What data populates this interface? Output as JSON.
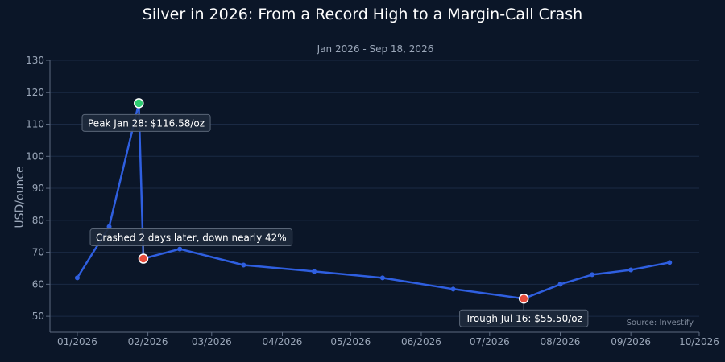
{
  "chart_data": {
    "type": "line",
    "title": "Silver in 2026: From a Record High to a Margin-Call Crash",
    "subtitle": "Jan 2026 - Sep 18, 2026",
    "ylabel": "USD/ounce",
    "xlabel": "",
    "source": "Source: Investify",
    "ylim": [
      45,
      130
    ],
    "xlim": [
      "2025-12-20",
      "2026-10-01"
    ],
    "yticks": [
      50,
      60,
      70,
      80,
      90,
      100,
      110,
      120,
      130
    ],
    "xticks": [
      {
        "date": "2026-01-01",
        "label": "01/2026"
      },
      {
        "date": "2026-02-01",
        "label": "02/2026"
      },
      {
        "date": "2026-03-01",
        "label": "03/2026"
      },
      {
        "date": "2026-04-01",
        "label": "04/2026"
      },
      {
        "date": "2026-05-01",
        "label": "05/2026"
      },
      {
        "date": "2026-06-01",
        "label": "06/2026"
      },
      {
        "date": "2026-07-01",
        "label": "07/2026"
      },
      {
        "date": "2026-08-01",
        "label": "08/2026"
      },
      {
        "date": "2026-09-01",
        "label": "09/2026"
      },
      {
        "date": "2026-10-01",
        "label": "10/2026"
      }
    ],
    "grid": true,
    "series": [
      {
        "color": "#2f5fe0",
        "points": [
          {
            "x": "2026-01-01",
            "y": 62
          },
          {
            "x": "2026-01-15",
            "y": 78
          },
          {
            "x": "2026-01-28",
            "y": 116.58
          },
          {
            "x": "2026-01-30",
            "y": 68
          },
          {
            "x": "2026-02-15",
            "y": 71
          },
          {
            "x": "2026-03-15",
            "y": 66
          },
          {
            "x": "2026-04-15",
            "y": 64
          },
          {
            "x": "2026-05-15",
            "y": 62
          },
          {
            "x": "2026-06-15",
            "y": 58.5
          },
          {
            "x": "2026-07-16",
            "y": 55.5
          },
          {
            "x": "2026-08-01",
            "y": 60
          },
          {
            "x": "2026-08-15",
            "y": 63
          },
          {
            "x": "2026-09-01",
            "y": 64.5
          },
          {
            "x": "2026-09-18",
            "y": 66.8
          }
        ]
      }
    ],
    "highlights": [
      {
        "x": "2026-01-28",
        "y": 116.58,
        "color": "#2ecc71"
      },
      {
        "x": "2026-01-30",
        "y": 68,
        "color": "#e74c3c"
      },
      {
        "x": "2026-07-16",
        "y": 55.5,
        "color": "#e74c3c"
      }
    ],
    "annotations": [
      {
        "text": "Peak Jan 28: $116.58/oz",
        "x": "2026-01-28",
        "y": 116.58,
        "placement": "below"
      },
      {
        "text": "Crashed 2 days later, down nearly 42%",
        "x": "2026-01-30",
        "y": 68,
        "placement": "above"
      },
      {
        "text": "Trough Jul 16: $55.50/oz",
        "x": "2026-07-16",
        "y": 55.5,
        "placement": "below"
      }
    ]
  }
}
